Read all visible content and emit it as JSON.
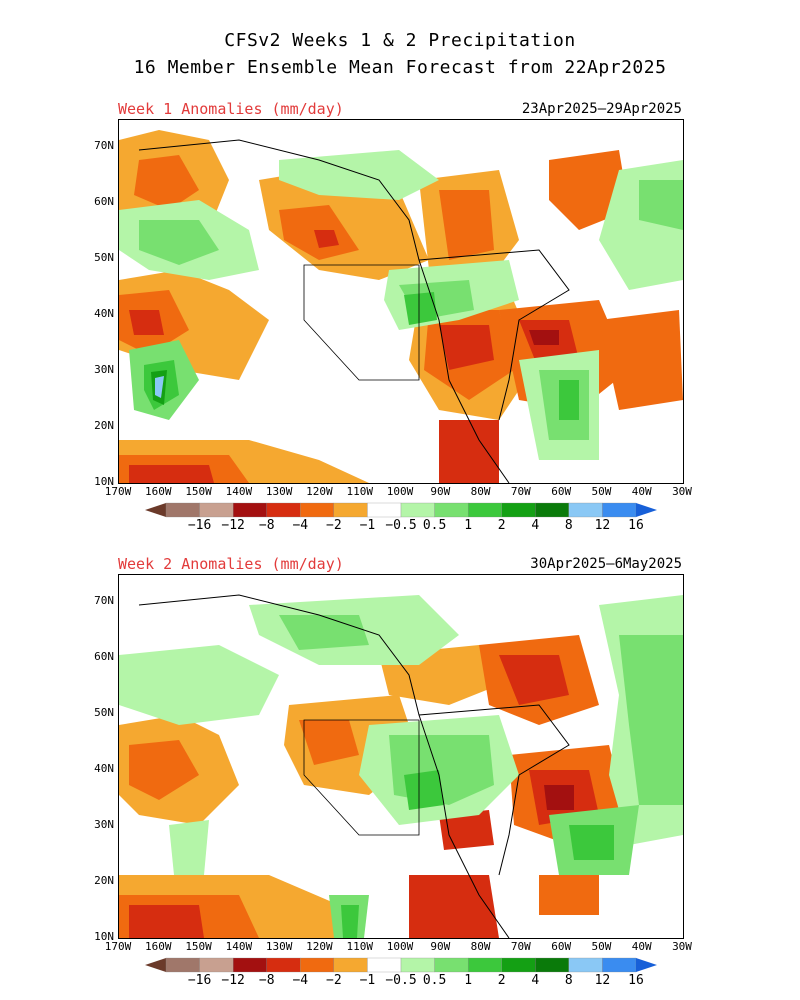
{
  "header": {
    "title_line1": "CFSv2 Weeks 1 & 2 Precipitation",
    "title_line2": "16 Member Ensemble Mean Forecast from 22Apr2025"
  },
  "panels": [
    {
      "label": "Week 1 Anomalies (mm/day)",
      "dates": "23Apr2025–29Apr2025"
    },
    {
      "label": "Week 2 Anomalies (mm/day)",
      "dates": "30Apr2025–6May2025"
    }
  ],
  "axes": {
    "lat_labels": [
      "70N",
      "60N",
      "50N",
      "40N",
      "30N",
      "20N",
      "10N"
    ],
    "lon_labels": [
      "170W",
      "160W",
      "150W",
      "140W",
      "130W",
      "120W",
      "110W",
      "100W",
      "90W",
      "80W",
      "70W",
      "60W",
      "50W",
      "40W",
      "30W"
    ]
  },
  "colorbar": {
    "labels": [
      "−16",
      "−12",
      "−8",
      "−4",
      "−2",
      "−1",
      "−0.5",
      "0.5",
      "1",
      "2",
      "4",
      "8",
      "12",
      "16"
    ],
    "colors": [
      "#6b3a2a",
      "#a0776a",
      "#c8a090",
      "#a31010",
      "#d62d10",
      "#f06a10",
      "#f5a830",
      "#ffffff",
      "#b4f5a8",
      "#78e070",
      "#3cc83c",
      "#14a014",
      "#0a7a0a",
      "#8ac8f5",
      "#3a8cf0",
      "#1860d8"
    ]
  },
  "colors": {
    "label_red": "#e23b3b",
    "dry_strong": "#a31010",
    "dry_mid": "#d62d10",
    "dry_light": "#f06a10",
    "dry_faint": "#f5a830",
    "wet_faint": "#b4f5a8",
    "wet_light": "#78e070",
    "wet_mid": "#3cc83c",
    "wet_strong": "#14a014",
    "wet_blue": "#8ac8f5"
  }
}
